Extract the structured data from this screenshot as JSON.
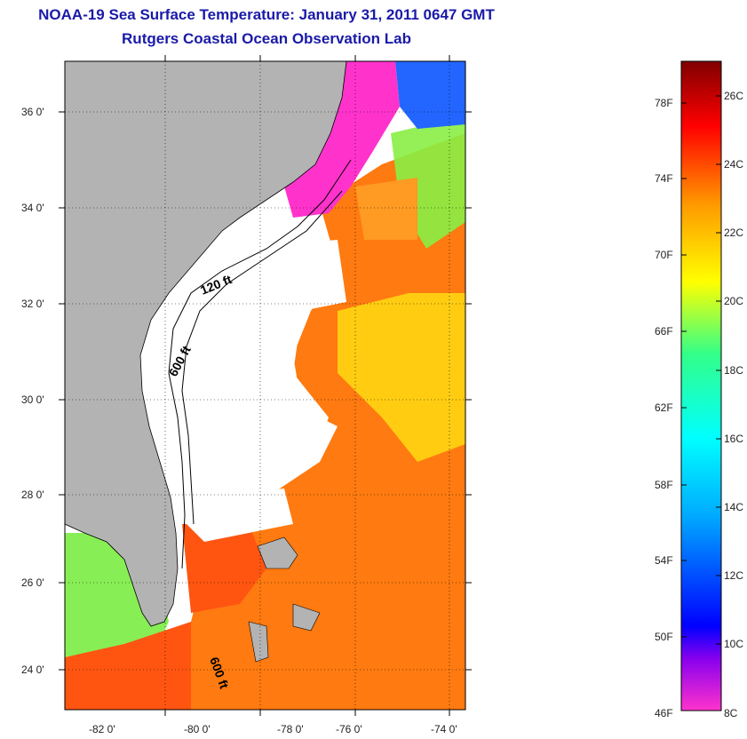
{
  "header": {
    "title": "NOAA-19 Sea Surface Temperature:  January 31, 2011 0647 GMT",
    "subtitle": "Rutgers Coastal Ocean Observation Lab"
  },
  "map": {
    "lat_labels": [
      "36 0'",
      "34 0'",
      "32 0'",
      "30 0'",
      "28 0'",
      "26 0'",
      "24 0'"
    ],
    "lon_labels": [
      "-82 0'",
      "-80 0'",
      "-78 0'",
      "-76 0'",
      "-74 0'"
    ],
    "contour_labels": [
      "120 ft",
      "600 ft",
      "600 ft"
    ],
    "colors": {
      "land": "#b3b3b3",
      "cloud": "#ffffff",
      "cold": "#ff33cc",
      "cool": "#2266ff",
      "mid": "#33ee99",
      "warm": "#ffcc00",
      "hot": "#ff4400"
    }
  },
  "colorbar": {
    "fahrenheit_labels": [
      "78F",
      "74F",
      "70F",
      "66F",
      "62F",
      "58F",
      "54F",
      "50F",
      "46F"
    ],
    "celsius_labels": [
      "26C",
      "24C",
      "22C",
      "20C",
      "18C",
      "16C",
      "14C",
      "12C",
      "10C",
      "8C"
    ],
    "stops": [
      "#ff33cc",
      "#5500ff",
      "#0000ff",
      "#00ffff",
      "#33ff88",
      "#ffff00",
      "#ff8800",
      "#ff0000",
      "#800000"
    ]
  }
}
